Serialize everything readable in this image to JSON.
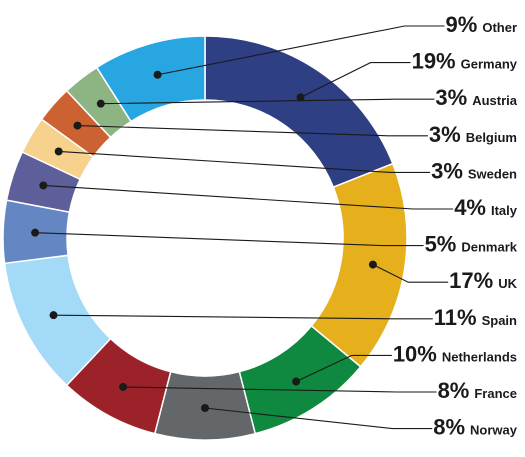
{
  "chart_data": {
    "type": "pie",
    "donut": true,
    "slices": [
      {
        "label": "Germany",
        "pct_text": "19%",
        "value": 19,
        "color": "#2E3F84"
      },
      {
        "label": "UK",
        "pct_text": "17%",
        "value": 17,
        "color": "#E6AF1C"
      },
      {
        "label": "Netherlands",
        "pct_text": "10%",
        "value": 10,
        "color": "#0F8840"
      },
      {
        "label": "Norway",
        "pct_text": "8%",
        "value": 8,
        "color": "#636769"
      },
      {
        "label": "France",
        "pct_text": "8%",
        "value": 8,
        "color": "#9C2229"
      },
      {
        "label": "Spain",
        "pct_text": "11%",
        "value": 11,
        "color": "#A3DAF7"
      },
      {
        "label": "Denmark",
        "pct_text": "5%",
        "value": 5,
        "color": "#6487C3"
      },
      {
        "label": "Italy",
        "pct_text": "4%",
        "value": 4,
        "color": "#5C5F99"
      },
      {
        "label": "Sweden",
        "pct_text": "3%",
        "value": 3,
        "color": "#F6D28C"
      },
      {
        "label": "Belgium",
        "pct_text": "3%",
        "value": 3,
        "color": "#CC6232"
      },
      {
        "label": "Austria",
        "pct_text": "3%",
        "value": 3,
        "color": "#8DB583"
      },
      {
        "label": "Other",
        "pct_text": "9%",
        "value": 9,
        "color": "#27A6E1"
      }
    ],
    "label_order": [
      "Other",
      "Germany",
      "Austria",
      "Belgium",
      "Sweden",
      "Italy",
      "Denmark",
      "UK",
      "Spain",
      "Netherlands",
      "France",
      "Norway"
    ],
    "legend": "right"
  }
}
